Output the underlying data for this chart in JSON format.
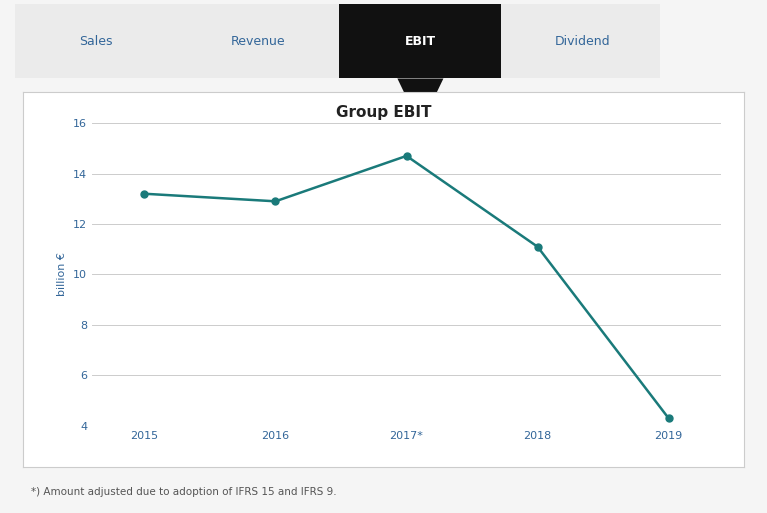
{
  "title": "Group EBIT",
  "years": [
    "2015",
    "2016",
    "2017*",
    "2018",
    "2019"
  ],
  "values": [
    13.2,
    12.9,
    14.7,
    11.1,
    4.3
  ],
  "line_color": "#1a7a7a",
  "marker_color": "#1a7a7a",
  "ylabel": "billion €",
  "ylim": [
    4,
    16
  ],
  "yticks": [
    4,
    6,
    8,
    10,
    12,
    14,
    16
  ],
  "footnote": "*) Amount adjusted due to adoption of IFRS 15 and IFRS 9.",
  "nav_labels": [
    "Sales",
    "Revenue",
    "EBIT",
    "Dividend"
  ],
  "nav_active_index": 2,
  "nav_bg": "#ebebeb",
  "nav_active_bg": "#111111",
  "nav_active_color": "#ffffff",
  "nav_inactive_color": "#336699",
  "outer_bg": "#f5f5f5",
  "chart_bg": "#ffffff",
  "chart_border": "#cccccc",
  "grid_color": "#cccccc",
  "tick_color": "#336699",
  "title_fontsize": 11,
  "ylabel_fontsize": 8,
  "tick_fontsize": 8,
  "footnote_fontsize": 7.5,
  "nav_fontsize": 9
}
